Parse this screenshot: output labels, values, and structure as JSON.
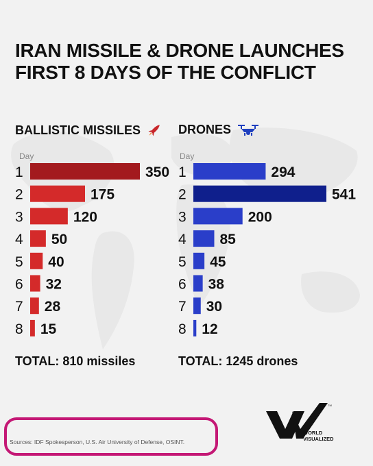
{
  "title_line1": "IRAN MISSILE & DRONE LAUNCHES",
  "title_line2": "FIRST 8 DAYS OF THE CONFLICT",
  "chart_data": [
    {
      "type": "bar",
      "title": "BALLISTIC MISSILES",
      "icon": "rocket-icon",
      "axis_label": "Day",
      "categories": [
        "1",
        "2",
        "3",
        "4",
        "5",
        "6",
        "7",
        "8"
      ],
      "values": [
        350,
        175,
        120,
        50,
        40,
        32,
        28,
        15
      ],
      "colors": [
        "#a31a1e",
        "#d42a2a",
        "#d42a2a",
        "#d42a2a",
        "#d42a2a",
        "#d42a2a",
        "#d42a2a",
        "#d42a2a"
      ],
      "total": "TOTAL: 810 missiles"
    },
    {
      "type": "bar",
      "title": "DRONES",
      "icon": "drone-icon",
      "axis_label": "Day",
      "categories": [
        "1",
        "2",
        "3",
        "4",
        "5",
        "6",
        "7",
        "8"
      ],
      "values": [
        294,
        541,
        200,
        85,
        45,
        38,
        30,
        12
      ],
      "colors": [
        "#2a3ec9",
        "#0f1f8c",
        "#2a3ec9",
        "#2a3ec9",
        "#2a3ec9",
        "#2a3ec9",
        "#2a3ec9",
        "#2a3ec9"
      ],
      "total": "TOTAL: 1245 drones"
    }
  ],
  "sources": "Sources: IDF Spokesperson, U.S. Air University of Defense, OSINT.",
  "logo": {
    "name": "world-visualized-logo",
    "line1": "WORLD",
    "line2": "VISUALIZED",
    "tm": "TM"
  }
}
